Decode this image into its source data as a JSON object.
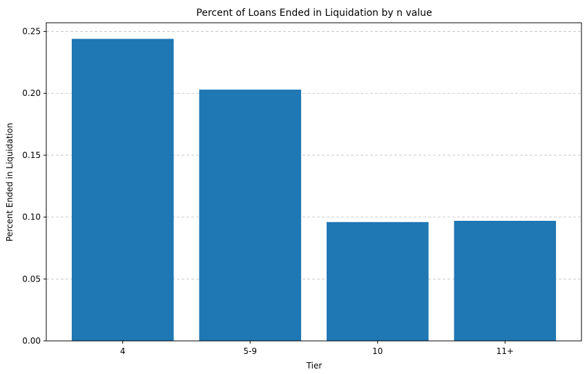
{
  "chart_data": {
    "type": "bar",
    "title": "Percent of Loans Ended in Liquidation by n value",
    "xlabel": "Tier",
    "ylabel": "Percent Ended in Liquidation",
    "categories": [
      "4",
      "5-9",
      "10",
      "11+"
    ],
    "values": [
      0.244,
      0.203,
      0.096,
      0.097
    ],
    "ylim": [
      0,
      0.257
    ],
    "yticks": [
      0.0,
      0.05,
      0.1,
      0.15,
      0.2,
      0.25
    ],
    "ytick_labels": [
      "0.00",
      "0.05",
      "0.10",
      "0.15",
      "0.20",
      "0.25"
    ],
    "grid": "y-dashed",
    "bar_color": "#1f77b4"
  }
}
